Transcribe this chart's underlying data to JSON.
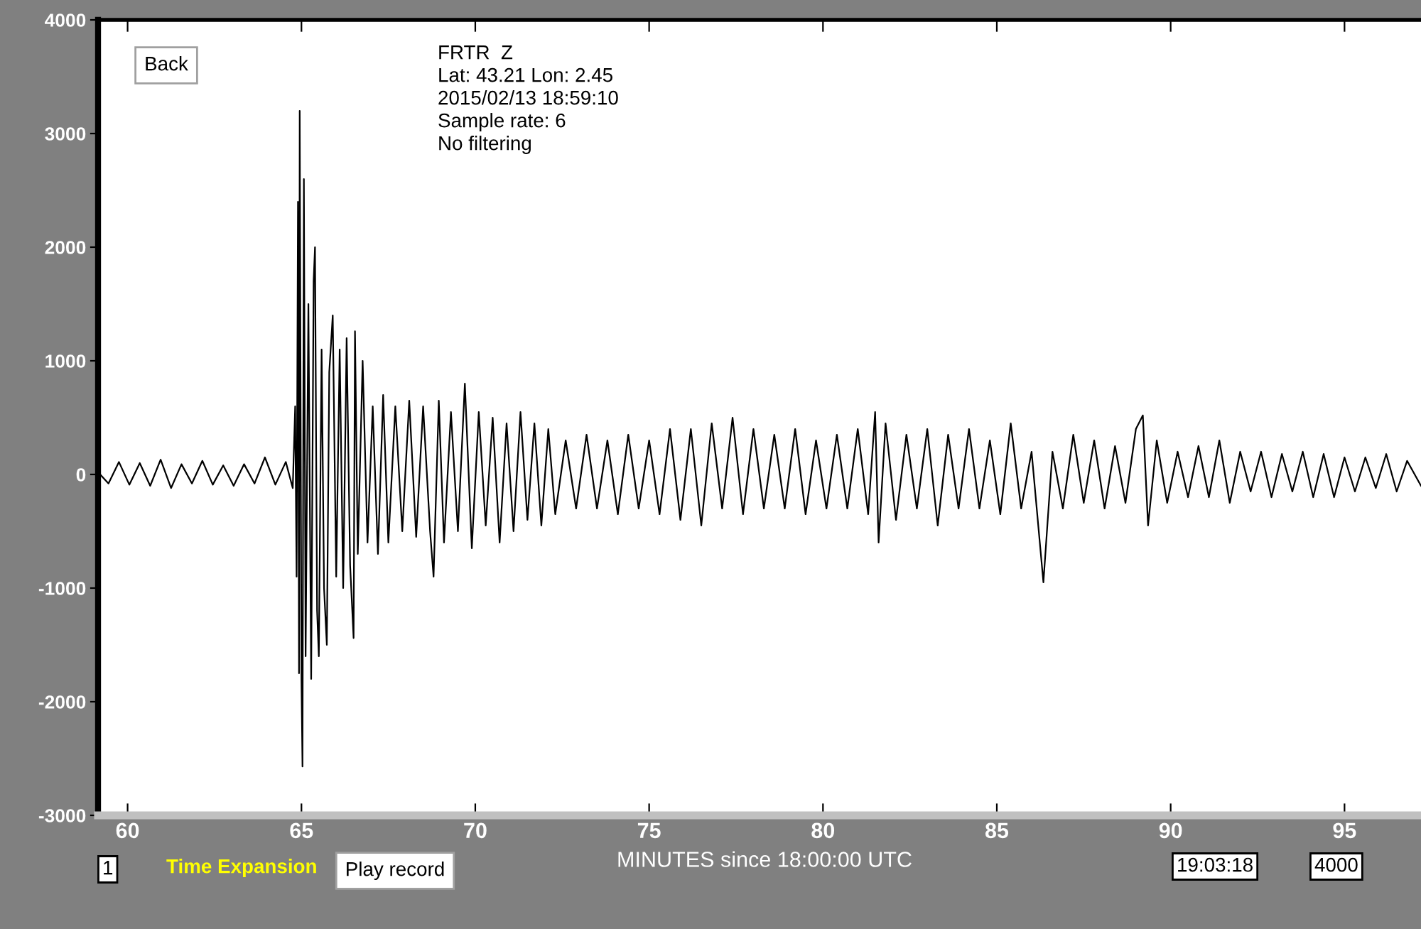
{
  "chart_data": {
    "type": "line",
    "xlabel": "MINUTES since 18:00:00 UTC",
    "xlim": [
      59.15,
      97.2
    ],
    "xticks": [
      60,
      65,
      70,
      75,
      80,
      85,
      90,
      95
    ],
    "ylim": [
      -3000,
      4000
    ],
    "yticks": [
      -3000,
      -2000,
      -1000,
      0,
      1000,
      2000,
      3000,
      4000
    ],
    "grid": false,
    "marker": "none",
    "line_style": "solid",
    "annotations": [
      "FRTR  Z",
      "Lat: 43.21 Lon: 2.45",
      "2015/02/13 18:59:10",
      "Sample rate: 6",
      "No filtering",
      "Back",
      "1",
      "Time Expansion",
      "Play record",
      "19:03:18",
      "4000"
    ],
    "series": [
      {
        "color": "#000000",
        "x": [
          59.15,
          59.45,
          59.75,
          60.05,
          60.35,
          60.65,
          60.95,
          61.25,
          61.55,
          61.85,
          62.15,
          62.45,
          62.75,
          63.05,
          63.35,
          63.65,
          63.95,
          64.25,
          64.55,
          64.75,
          64.82,
          64.86,
          64.9,
          64.93,
          64.95,
          65.0,
          65.03,
          65.07,
          65.12,
          65.2,
          65.28,
          65.35,
          65.39,
          65.45,
          65.5,
          65.58,
          65.65,
          65.73,
          65.8,
          65.9,
          66.0,
          66.1,
          66.2,
          66.3,
          66.4,
          66.5,
          66.54,
          66.62,
          66.76,
          66.9,
          67.05,
          67.2,
          67.35,
          67.5,
          67.7,
          67.9,
          68.1,
          68.3,
          68.5,
          68.7,
          68.8,
          68.95,
          69.1,
          69.3,
          69.5,
          69.7,
          69.9,
          70.1,
          70.3,
          70.5,
          70.7,
          70.9,
          71.1,
          71.3,
          71.5,
          71.7,
          71.9,
          72.1,
          72.3,
          72.6,
          72.9,
          73.2,
          73.5,
          73.8,
          74.1,
          74.4,
          74.7,
          75.0,
          75.3,
          75.6,
          75.9,
          76.2,
          76.5,
          76.8,
          77.1,
          77.4,
          77.7,
          78.0,
          78.3,
          78.6,
          78.9,
          79.2,
          79.5,
          79.8,
          80.1,
          80.4,
          80.7,
          81.0,
          81.3,
          81.5,
          81.6,
          81.8,
          82.1,
          82.4,
          82.7,
          83.0,
          83.3,
          83.6,
          83.9,
          84.2,
          84.5,
          84.8,
          85.1,
          85.4,
          85.7,
          86.0,
          86.34,
          86.6,
          86.9,
          87.2,
          87.5,
          87.8,
          88.1,
          88.4,
          88.7,
          89.0,
          89.2,
          89.35,
          89.6,
          89.9,
          90.2,
          90.5,
          90.8,
          91.1,
          91.4,
          91.7,
          92.0,
          92.3,
          92.6,
          92.9,
          93.2,
          93.5,
          93.8,
          94.1,
          94.4,
          94.7,
          95.0,
          95.3,
          95.6,
          95.9,
          96.2,
          96.5,
          96.8,
          97.2
        ],
        "values": [
          20,
          -80,
          110,
          -90,
          100,
          -100,
          130,
          -120,
          90,
          -80,
          120,
          -90,
          80,
          -100,
          90,
          -80,
          150,
          -90,
          110,
          -120,
          600,
          -900,
          2400,
          -1750,
          3200,
          -1800,
          -2570,
          2600,
          -1600,
          1500,
          -1800,
          1700,
          2000,
          -1200,
          -1600,
          1100,
          -1000,
          -1500,
          900,
          1400,
          -900,
          1100,
          -1000,
          1200,
          -800,
          -1440,
          1260,
          -700,
          1000,
          -600,
          600,
          -700,
          700,
          -600,
          600,
          -500,
          650,
          -550,
          600,
          -500,
          -900,
          650,
          -600,
          550,
          -500,
          800,
          -650,
          550,
          -450,
          500,
          -600,
          450,
          -500,
          550,
          -400,
          450,
          -450,
          400,
          -350,
          300,
          -300,
          350,
          -300,
          300,
          -350,
          350,
          -300,
          300,
          -350,
          400,
          -400,
          400,
          -450,
          450,
          -300,
          500,
          -350,
          400,
          -300,
          350,
          -300,
          400,
          -350,
          300,
          -300,
          350,
          -300,
          400,
          -350,
          550,
          -600,
          450,
          -400,
          350,
          -300,
          400,
          -450,
          350,
          -300,
          400,
          -300,
          300,
          -350,
          450,
          -300,
          200,
          -950,
          200,
          -300,
          350,
          -250,
          300,
          -300,
          250,
          -250,
          400,
          520,
          -450,
          300,
          -250,
          200,
          -200,
          250,
          -200,
          300,
          -250,
          200,
          -150,
          200,
          -200,
          180,
          -150,
          200,
          -200,
          180,
          -200,
          150,
          -150,
          150,
          -120,
          180,
          -150,
          120,
          -100
        ]
      }
    ]
  }
}
